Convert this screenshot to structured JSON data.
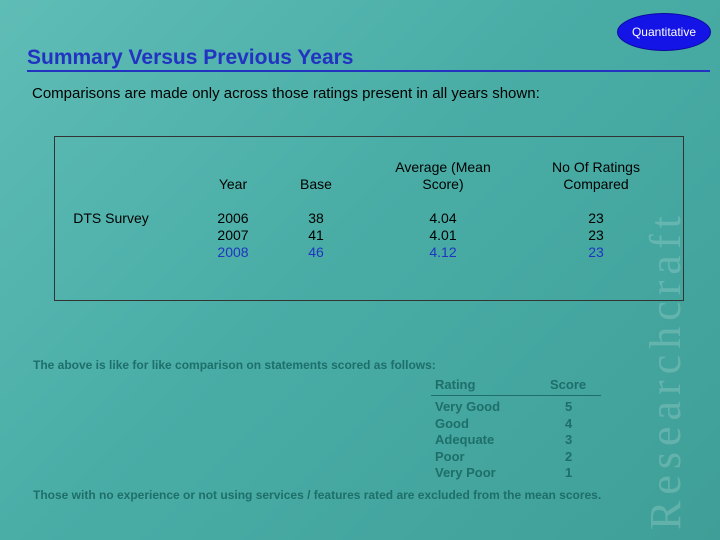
{
  "watermark": "Researchcraft",
  "badge": "Quantitative",
  "title": "Summary Versus Previous Years",
  "subtitle": "Comparisons are made only across those ratings present in all years shown:",
  "table": {
    "row_label": "DTS Survey",
    "headers": {
      "year": "Year",
      "base": "Base",
      "average": "Average (Mean Score)",
      "ratings": "No Of Ratings Compared"
    },
    "rows": [
      {
        "year": "2006",
        "base": "38",
        "average": "4.04",
        "ratings": "23"
      },
      {
        "year": "2007",
        "base": "41",
        "average": "4.01",
        "ratings": "23"
      },
      {
        "year": "2008",
        "base": "46",
        "average": "4.12",
        "ratings": "23"
      }
    ]
  },
  "scale_intro": "The above is like for like comparison on statements scored as follows:",
  "scale": {
    "rating_header": "Rating",
    "score_header": "Score",
    "items": [
      {
        "rating": "Very Good",
        "score": "5"
      },
      {
        "rating": "Good",
        "score": "4"
      },
      {
        "rating": "Adequate",
        "score": "3"
      },
      {
        "rating": "Poor",
        "score": "2"
      },
      {
        "rating": "Very Poor",
        "score": "1"
      }
    ]
  },
  "footnote": "Those with no experience or not using services / features rated are excluded from the mean scores."
}
